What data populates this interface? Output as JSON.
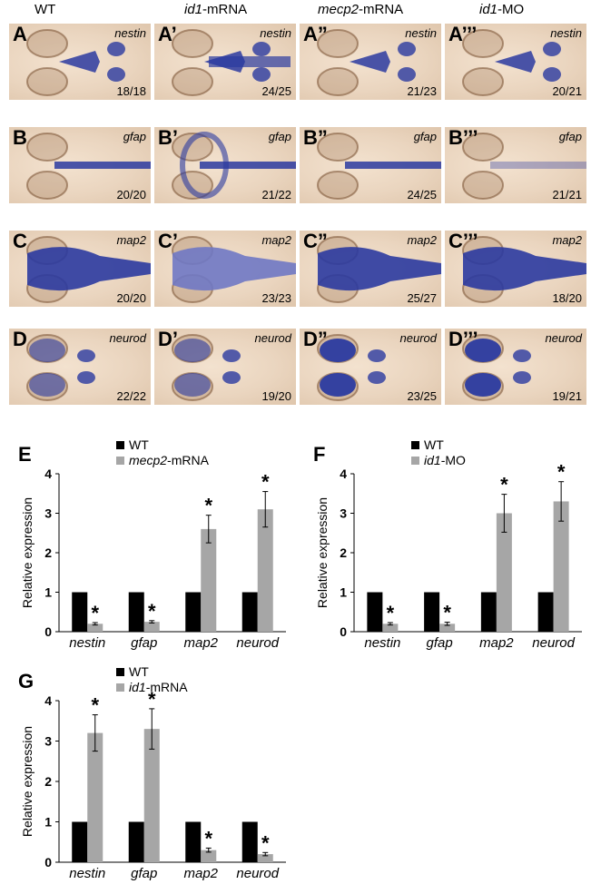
{
  "columns": [
    {
      "plain": "WT",
      "italic": ""
    },
    {
      "italic": "id1",
      "plain": "-mRNA"
    },
    {
      "italic": "mecp2",
      "plain": "-mRNA"
    },
    {
      "italic": "id1",
      "plain": "-MO"
    }
  ],
  "rows": [
    {
      "gene": "nestin",
      "labels": [
        "A",
        "A’",
        "A”",
        "A’’’"
      ],
      "counts": [
        "18/18",
        "24/25",
        "21/23",
        "20/21"
      ]
    },
    {
      "gene": "gfap",
      "labels": [
        "B",
        "B’",
        "B”",
        "B’’’"
      ],
      "counts": [
        "20/20",
        "21/22",
        "24/25",
        "21/21"
      ]
    },
    {
      "gene": "map2",
      "labels": [
        "C",
        "C’",
        "C”",
        "C’’’"
      ],
      "counts": [
        "20/20",
        "23/23",
        "25/27",
        "18/20"
      ]
    },
    {
      "gene": "neurod",
      "labels": [
        "D",
        "D’",
        "D”",
        "D’’’"
      ],
      "counts": [
        "22/22",
        "19/20",
        "23/25",
        "19/21"
      ]
    }
  ],
  "chart_data": [
    {
      "panel": "E",
      "type": "bar",
      "categories": [
        "nestin",
        "gfap",
        "map2",
        "neurod"
      ],
      "series": [
        {
          "name": "WT",
          "values": [
            1,
            1,
            1,
            1
          ],
          "color": "#000000"
        },
        {
          "name_italic": "mecp2",
          "name": "-mRNA",
          "values": [
            0.2,
            0.25,
            2.6,
            3.1
          ],
          "errors": [
            0.03,
            0.03,
            0.35,
            0.45
          ],
          "color": "#a6a6a6"
        }
      ],
      "ylabel": "Relative expression",
      "ylim": [
        0,
        4
      ],
      "yticks": [
        "0",
        "1",
        "2",
        "3",
        "4"
      ],
      "significance": [
        false,
        false,
        false,
        false,
        true,
        true,
        true,
        true
      ]
    },
    {
      "panel": "F",
      "type": "bar",
      "categories": [
        "nestin",
        "gfap",
        "map2",
        "neurod"
      ],
      "series": [
        {
          "name": "WT",
          "values": [
            1,
            1,
            1,
            1
          ],
          "color": "#000000"
        },
        {
          "name_italic": "id1",
          "name": "-MO",
          "values": [
            0.2,
            0.2,
            3.0,
            3.3
          ],
          "errors": [
            0.03,
            0.04,
            0.48,
            0.5
          ],
          "color": "#a6a6a6"
        }
      ],
      "ylabel": "Relative expression",
      "ylim": [
        0,
        4
      ],
      "yticks": [
        "0",
        "1",
        "2",
        "3",
        "4"
      ],
      "significance": [
        false,
        false,
        false,
        false,
        true,
        true,
        true,
        true
      ]
    },
    {
      "panel": "G",
      "type": "bar",
      "categories": [
        "nestin",
        "gfap",
        "map2",
        "neurod"
      ],
      "series": [
        {
          "name": "WT",
          "values": [
            1,
            1,
            1,
            1
          ],
          "color": "#000000"
        },
        {
          "name_italic": "id1",
          "name": "-mRNA",
          "values": [
            3.2,
            3.3,
            0.3,
            0.2
          ],
          "errors": [
            0.45,
            0.5,
            0.05,
            0.04
          ],
          "color": "#a6a6a6"
        }
      ],
      "ylabel": "Relative expression",
      "ylim": [
        0,
        4
      ],
      "yticks": [
        "0",
        "1",
        "2",
        "3",
        "4"
      ],
      "significance": [
        false,
        false,
        false,
        false,
        true,
        true,
        true,
        true
      ]
    }
  ],
  "colors": {
    "stain": "#2b3aa0",
    "stain_light": "#6f78c4",
    "tissue": "#ead5bf"
  }
}
